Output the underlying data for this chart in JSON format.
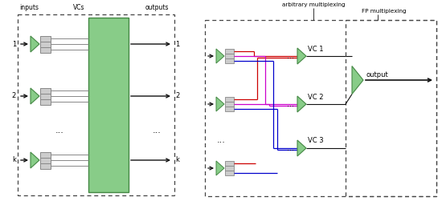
{
  "fig_width": 5.5,
  "fig_height": 2.56,
  "dpi": 100,
  "green_color": "#88CC88",
  "green_edge": "#448844",
  "gray_color": "#CCCCCC",
  "gray_edge": "#888888",
  "dash_color": "#444444",
  "line_color": "#111111",
  "red_color": "#CC0000",
  "blue_color": "#0000CC",
  "magenta_color": "#CC00CC",
  "left_labels": [
    "inputs",
    "VCs",
    "outputs"
  ],
  "right_labels_arb": "arbitrary multiplexing",
  "right_labels_fp": "FP multiplexing",
  "vc_labels": [
    "VC 1",
    "VC 2",
    "VC 3"
  ],
  "output_label": "output",
  "row1_label": "1",
  "row2_label": "2",
  "rowk_label": "k"
}
